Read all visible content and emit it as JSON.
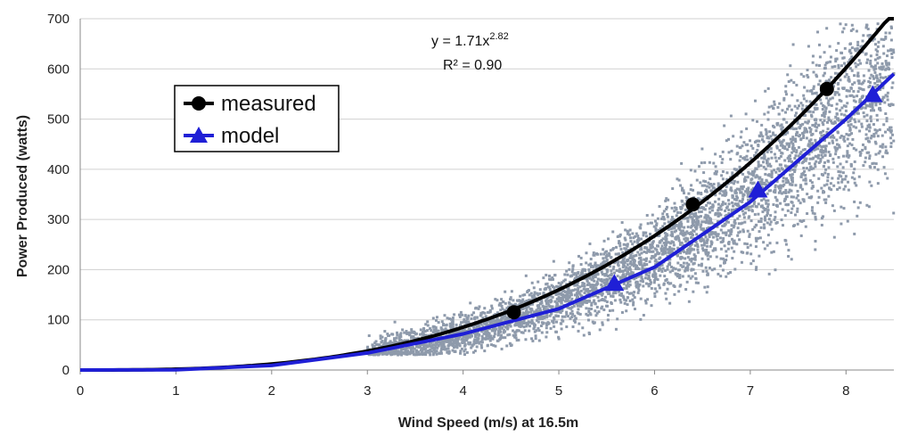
{
  "chart_data": {
    "type": "scatter",
    "xlabel": "Wind Speed (m/s) at 16.5m",
    "ylabel": "Power Produced (watts)",
    "xlim": [
      0,
      8.5
    ],
    "ylim": [
      0,
      700
    ],
    "x_ticks": [
      "0",
      "1",
      "2",
      "3",
      "4",
      "5",
      "6",
      "7",
      "8"
    ],
    "y_ticks": [
      "0",
      "100",
      "200",
      "300",
      "400",
      "500",
      "600",
      "700"
    ],
    "grid": "horizontal",
    "legend_position": "top-left",
    "trendline": {
      "equation_prefix": "y = 1.71x",
      "equation_exponent": "2.82",
      "r_squared": "R² = 0.90",
      "coefficient": 1.71,
      "exponent": 2.82
    },
    "scatter_cloud": {
      "color": "#8e9aab",
      "x_range": [
        3.0,
        8.5
      ],
      "approx_points": 4500
    },
    "series": [
      {
        "name": "measured",
        "color": "#000000",
        "marker": "circle",
        "points": [
          [
            4.53,
            115
          ],
          [
            6.4,
            330
          ],
          [
            7.8,
            560
          ]
        ]
      },
      {
        "name": "model",
        "color": "#1f1fd6",
        "marker": "triangle",
        "points": [
          [
            5.58,
            172
          ],
          [
            7.08,
            358
          ],
          [
            8.28,
            548
          ]
        ],
        "curve": [
          [
            0,
            0
          ],
          [
            1,
            0.6
          ],
          [
            2,
            9
          ],
          [
            3,
            34
          ],
          [
            4,
            72
          ],
          [
            5,
            122
          ],
          [
            6,
            205
          ],
          [
            7,
            335
          ],
          [
            8,
            500
          ],
          [
            8.5,
            590
          ]
        ]
      }
    ]
  }
}
